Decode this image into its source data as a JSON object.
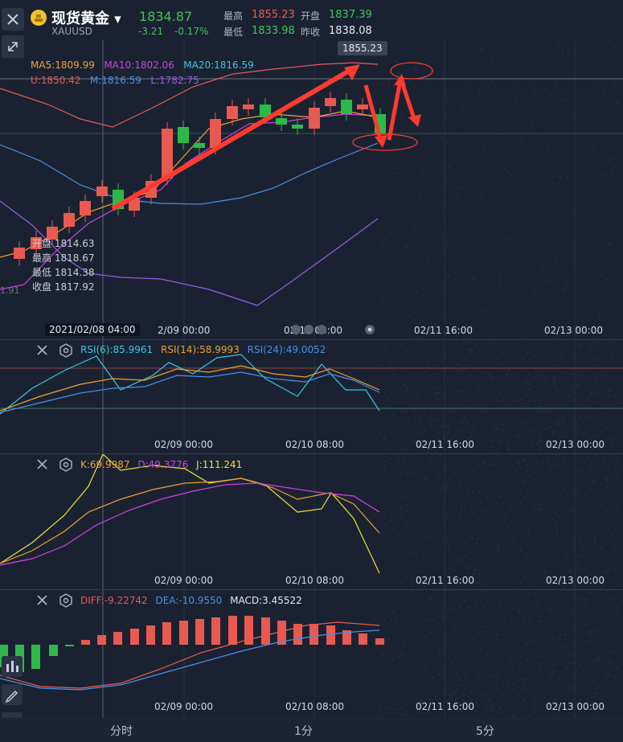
{
  "header": {
    "instrument_name": "现货黄金",
    "symbol": "XAUUSD",
    "price": "1834.87",
    "change": "-3.21",
    "change_pct": "-0.17%",
    "stats": [
      {
        "label": "最高",
        "value": "1855.23",
        "color": "#e85a4f"
      },
      {
        "label": "开盘",
        "value": "1837.39",
        "color": "#3fc35b"
      },
      {
        "label": "最低",
        "value": "1833.98",
        "color": "#3fc35b"
      },
      {
        "label": "昨收",
        "value": "1838.08",
        "color": "#e6e9ee"
      }
    ]
  },
  "main_chart": {
    "ma_legend": [
      {
        "text": "MA5:1809.99",
        "color": "#f0a030"
      },
      {
        "text": "MA10:1802.06",
        "color": "#d040e0"
      },
      {
        "text": "MA20:1816.59",
        "color": "#38c8e0"
      }
    ],
    "boll_legend": [
      {
        "text": "U:1850.42",
        "color": "#e85a4f"
      },
      {
        "text": "M:1816.59",
        "color": "#4a8ee8"
      },
      {
        "text": "L:1782.75",
        "color": "#9a5ae8"
      }
    ],
    "price_marker": "1855.23",
    "left_edge_value": "1.91",
    "crosshair_info": [
      {
        "label": "开盘",
        "value": "1814.63"
      },
      {
        "label": "最高",
        "value": "1818.67"
      },
      {
        "label": "最低",
        "value": "1814.38"
      },
      {
        "label": "收盘",
        "value": "1817.92"
      }
    ],
    "crosshair_time": "2021/02/08 04:00",
    "time_labels": [
      "2/09 00:00",
      "02/10 08:00",
      "02/11 16:00",
      "02/13 00:00"
    ]
  },
  "rsi_panel": {
    "legend": [
      {
        "text": "RSI(6):85.9961",
        "color": "#38c8e0"
      },
      {
        "text": "RSI(14):58.9993",
        "color": "#f0a030"
      },
      {
        "text": "RSI(24):49.0052",
        "color": "#4a8ee8"
      }
    ],
    "time_labels": [
      "02/09 00:00",
      "02/10 08:00",
      "02/11 16:00",
      "02/13 00:00"
    ]
  },
  "kdj_panel": {
    "legend": [
      {
        "text": "K:69.9987",
        "color": "#f0a030"
      },
      {
        "text": "D:49.3776",
        "color": "#d040e0"
      },
      {
        "text": "J:111.241",
        "color": "#f0e030"
      }
    ],
    "time_labels": [
      "02/09 00:00",
      "02/10 08:00",
      "02/11 16:00",
      "02/13 00:00"
    ]
  },
  "macd_panel": {
    "legend": [
      {
        "text": "DIFF:-9.22742",
        "color": "#e85a4f"
      },
      {
        "text": "DEA:-10.9550",
        "color": "#4a8ee8"
      },
      {
        "text": "MACD:3.45522",
        "color": "#e6e9ee"
      }
    ],
    "time_labels": [
      "02/09 00:00",
      "02/10 08:00",
      "02/11 16:00",
      "02/13 00:00"
    ]
  },
  "bottom_tabs": [
    "分时",
    "1分",
    "5分"
  ],
  "colors": {
    "up": "#e85a4f",
    "down": "#2fb84a",
    "background": "#1a2232",
    "accent_red": "#ff3b30"
  }
}
